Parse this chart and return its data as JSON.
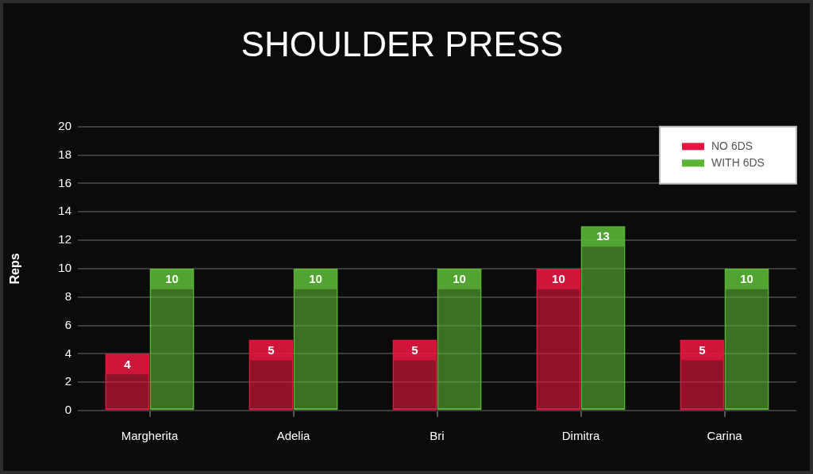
{
  "chart_data": {
    "type": "bar",
    "title": "SHOULDER PRESS",
    "ylabel": "Reps",
    "categories": [
      "Margherita",
      "Adelia",
      "Bri",
      "Dimitra",
      "Carina"
    ],
    "series": [
      {
        "name": "NO 6DS",
        "color": "#e5173f",
        "values": [
          4,
          5,
          5,
          10,
          5
        ]
      },
      {
        "name": "WITH 6DS",
        "color": "#5ab535",
        "values": [
          10,
          10,
          10,
          13,
          10
        ]
      }
    ],
    "ylim": [
      0,
      20
    ],
    "yticks": [
      0,
      2,
      4,
      6,
      8,
      10,
      12,
      14,
      16,
      18,
      20
    ],
    "grid": "y",
    "legend": "top right",
    "data_labels": true
  }
}
